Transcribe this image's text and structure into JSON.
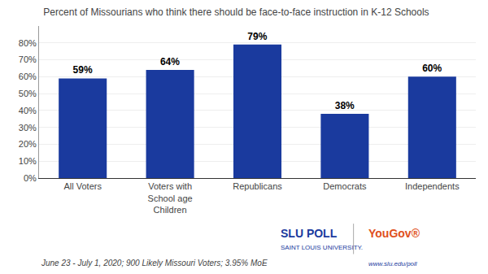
{
  "chart_data": {
    "type": "bar",
    "title": "Percent of Missourians who think there should be face-to-face instruction in K-12 Schools",
    "categories": [
      "All Voters",
      "Voters with\nSchool age\nChildren",
      "Republicans",
      "Democrats",
      "Independents"
    ],
    "values": [
      59,
      64,
      79,
      38,
      60
    ],
    "value_labels": [
      "59%",
      "64%",
      "79%",
      "38%",
      "60%"
    ],
    "data_labels": true,
    "color": "#1a3a9e",
    "ylim": [
      0,
      90
    ],
    "yticks": [
      {
        "value": 0,
        "label": "0%"
      },
      {
        "value": 10,
        "label": "10%"
      },
      {
        "value": 20,
        "label": "20%"
      },
      {
        "value": 30,
        "label": "30%"
      },
      {
        "value": 40,
        "label": "40%"
      },
      {
        "value": 50,
        "label": "50%"
      },
      {
        "value": 60,
        "label": "60%"
      },
      {
        "value": 70,
        "label": "70%"
      },
      {
        "value": 80,
        "label": "80%"
      }
    ],
    "grid": true,
    "annotations": [
      {
        "text": "June 23 - July 1, 2020; 900 Likely Missouri Voters; 3.95% MoE"
      },
      {
        "text": "SLU POLL",
        "color": "#1a3a9e"
      },
      {
        "text": "SAINT LOUIS UNIVERSITY.",
        "color": "#1a3a9e"
      },
      {
        "text": "YouGov®",
        "color": "#e05020"
      },
      {
        "text": "www.slu.edu/poll",
        "color": "#1a3a9e"
      }
    ]
  }
}
